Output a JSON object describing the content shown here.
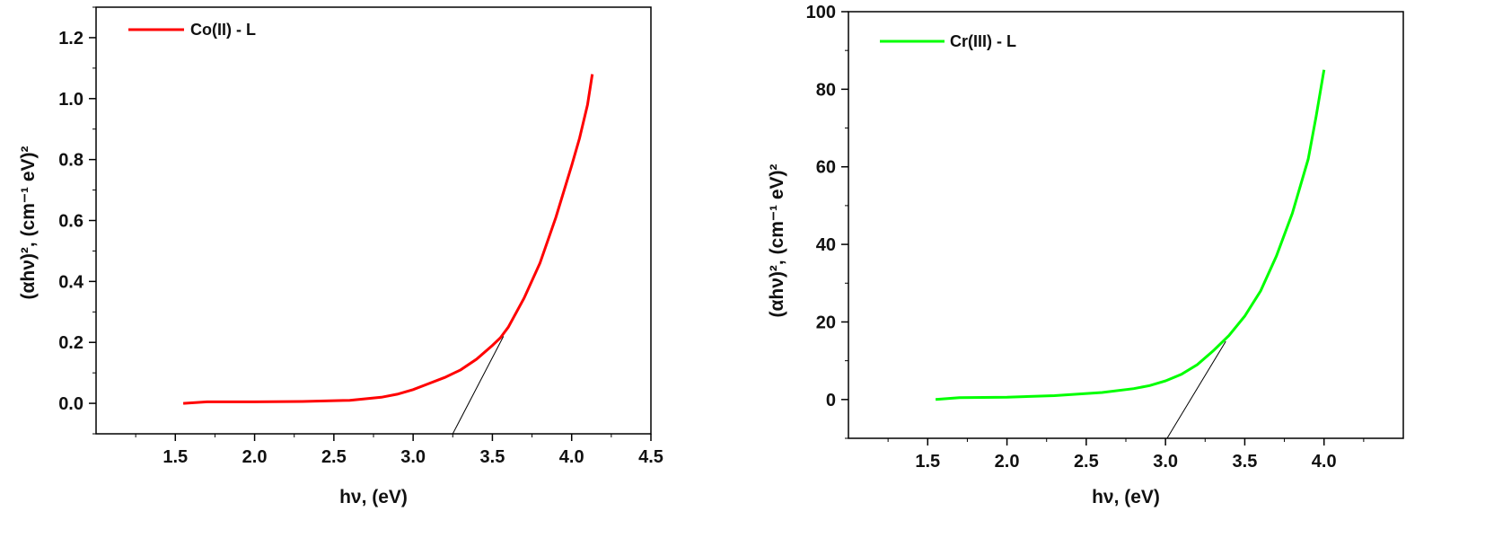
{
  "chart_data": [
    {
      "type": "line",
      "xlabel": "hν, (eV)",
      "ylabel": "(αhν)², (cm⁻¹ eV)²",
      "xlim": [
        1.0,
        4.5
      ],
      "ylim": [
        -0.1,
        1.3
      ],
      "xticks": [
        1.5,
        2.0,
        2.5,
        3.0,
        3.5,
        4.0,
        4.5
      ],
      "xtick_labels": [
        "1.5",
        "2.0",
        "2.5",
        "3.0",
        "3.5",
        "4.0",
        "4.5"
      ],
      "yticks": [
        0.0,
        0.2,
        0.4,
        0.6,
        0.8,
        1.0,
        1.2
      ],
      "ytick_labels": [
        "0.0",
        "0.2",
        "0.4",
        "0.6",
        "0.8",
        "1.0",
        "1.2"
      ],
      "legend_position": "top-left",
      "grid": false,
      "series": [
        {
          "name": "Co(II) - L",
          "color": "#ff0000",
          "x": [
            1.55,
            1.7,
            2.0,
            2.3,
            2.6,
            2.8,
            2.9,
            3.0,
            3.1,
            3.2,
            3.3,
            3.4,
            3.5,
            3.55,
            3.6,
            3.7,
            3.8,
            3.9,
            4.0,
            4.05,
            4.1,
            4.13
          ],
          "y": [
            0.0,
            0.005,
            0.005,
            0.006,
            0.01,
            0.02,
            0.03,
            0.045,
            0.065,
            0.085,
            0.11,
            0.145,
            0.19,
            0.215,
            0.25,
            0.345,
            0.46,
            0.61,
            0.78,
            0.87,
            0.98,
            1.08
          ]
        }
      ],
      "tangent": {
        "x": [
          3.25,
          3.57
        ],
        "y": [
          -0.1,
          0.22
        ],
        "color": "#000000"
      }
    },
    {
      "type": "line",
      "xlabel": "hν, (eV)",
      "ylabel": "(αhν)², (cm⁻¹ eV)²",
      "xlim": [
        1.0,
        4.5
      ],
      "ylim": [
        -10,
        100
      ],
      "xticks": [
        1.5,
        2.0,
        2.5,
        3.0,
        3.5,
        4.0
      ],
      "xtick_labels": [
        "1.5",
        "2.0",
        "2.5",
        "3.0",
        "3.5",
        "4.0"
      ],
      "yticks": [
        0,
        20,
        40,
        60,
        80,
        100
      ],
      "ytick_labels": [
        "0",
        "20",
        "40",
        "60",
        "80",
        "100"
      ],
      "legend_position": "top-left",
      "grid": false,
      "series": [
        {
          "name": "Cr(III) - L",
          "color": "#00ff00",
          "x": [
            1.55,
            1.7,
            2.0,
            2.3,
            2.6,
            2.8,
            2.9,
            3.0,
            3.1,
            3.2,
            3.3,
            3.4,
            3.5,
            3.6,
            3.7,
            3.8,
            3.9,
            3.95,
            4.0
          ],
          "y": [
            0.0,
            0.5,
            0.6,
            1.0,
            1.8,
            2.8,
            3.6,
            4.8,
            6.5,
            9.0,
            12.5,
            16.5,
            21.5,
            28.0,
            37.0,
            48.0,
            62.0,
            73.0,
            85.0
          ]
        }
      ],
      "tangent": {
        "x": [
          3.01,
          3.38
        ],
        "y": [
          -10,
          15
        ],
        "color": "#000000"
      }
    }
  ]
}
